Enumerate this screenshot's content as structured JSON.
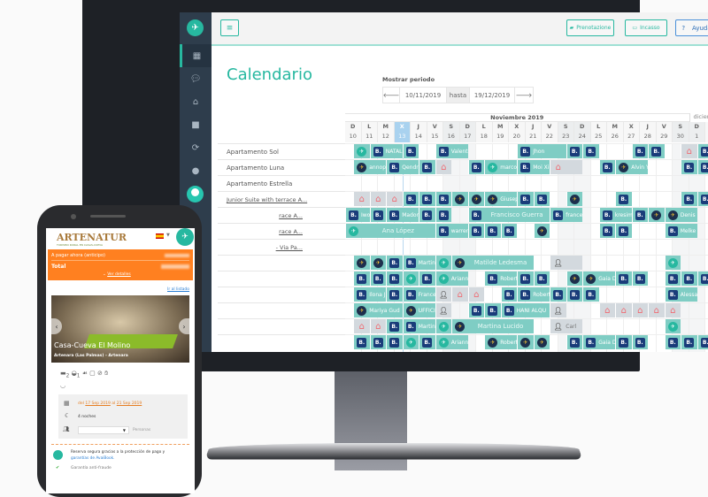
{
  "colors": {
    "accent": "#27b8a0",
    "booking_bar": "#7fcdc4",
    "phone_orange": "#ff8020"
  },
  "sidebar": {
    "items": [
      {
        "icon": "calendar-icon",
        "active": true
      },
      {
        "icon": "chat-icon"
      },
      {
        "icon": "home-icon"
      },
      {
        "icon": "briefcase-icon"
      },
      {
        "icon": "sync-icon"
      },
      {
        "icon": "globe-icon"
      }
    ]
  },
  "toolbar": {
    "prenotazione": "Prenotazione",
    "incasso": "Incasso",
    "ayuda": "Ayuda",
    "ayuda_icon": "?"
  },
  "page": {
    "title": "Calendario",
    "period_label": "Mostrar periodo",
    "from": "10/11/2019",
    "hasta": "hasta",
    "to": "19/12/2019"
  },
  "calendar": {
    "month": "Noviembre 2019",
    "next_month": "diciembre",
    "day_letters": [
      "D",
      "L",
      "M",
      "X",
      "J",
      "V",
      "S",
      "D",
      "L",
      "M",
      "X",
      "J",
      "V",
      "S",
      "D",
      "L",
      "M",
      "X",
      "J",
      "V",
      "S",
      "D",
      "L"
    ],
    "day_numbers": [
      "10",
      "11",
      "12",
      "13",
      "14",
      "15",
      "16",
      "17",
      "18",
      "19",
      "20",
      "21",
      "22",
      "23",
      "24",
      "25",
      "26",
      "27",
      "28",
      "29",
      "30",
      "1",
      "2"
    ],
    "today_index": 3,
    "weekend_indices": [
      6,
      7,
      13,
      14,
      20,
      21
    ],
    "rows": [
      {
        "label": "Apartamento Sol",
        "bookings": [
          [
            0.5,
            1,
            "avaibook",
            ""
          ],
          [
            1.5,
            2,
            "booking",
            "NATAL"
          ],
          [
            3.5,
            1,
            "booking",
            ""
          ],
          [
            5.5,
            2,
            "booking",
            "Valenti"
          ],
          [
            10.5,
            3,
            "booking",
            "Jhon"
          ],
          [
            13.5,
            1,
            "booking",
            ""
          ],
          [
            14.5,
            1,
            "booking",
            ""
          ],
          [
            17.5,
            1,
            "booking",
            ""
          ],
          [
            18.5,
            1,
            "booking",
            ""
          ],
          [
            20.5,
            1,
            "airbnb",
            ""
          ],
          [
            21.5,
            1,
            "booking",
            ""
          ]
        ]
      },
      {
        "label": "Apartamento Luna",
        "bookings": [
          [
            0.5,
            2,
            "expedia",
            "annop"
          ],
          [
            2.5,
            2,
            "booking",
            "Qendr"
          ],
          [
            4.5,
            1,
            "booking",
            ""
          ],
          [
            5.5,
            1,
            "airbnb",
            ""
          ],
          [
            7.5,
            1,
            "booking",
            ""
          ],
          [
            8.5,
            2,
            "avaibook",
            "marco"
          ],
          [
            10.5,
            2,
            "booking",
            "Moi Xi"
          ],
          [
            12.5,
            2,
            "airbnb",
            ""
          ],
          [
            15.5,
            1,
            "booking",
            ""
          ],
          [
            16.5,
            2,
            "expedia",
            "Alvin Y"
          ],
          [
            20.5,
            1,
            "booking",
            ""
          ],
          [
            21.5,
            1,
            "booking",
            ""
          ]
        ]
      },
      {
        "label": "Apartamento Estrella",
        "bookings": []
      },
      {
        "label": "Junior Suite with terrace A...",
        "link": true,
        "bookings": [
          [
            0.5,
            1,
            "airbnb",
            ""
          ],
          [
            1.5,
            1,
            "airbnb",
            ""
          ],
          [
            2.5,
            1,
            "airbnb",
            ""
          ],
          [
            3.5,
            1,
            "booking",
            ""
          ],
          [
            4.5,
            1,
            "booking",
            ""
          ],
          [
            5.5,
            1,
            "booking",
            ""
          ],
          [
            6.5,
            1,
            "expedia",
            ""
          ],
          [
            7.5,
            1,
            "expedia",
            ""
          ],
          [
            8.5,
            2,
            "expedia",
            "Giusep"
          ],
          [
            10.5,
            1,
            "booking",
            ""
          ],
          [
            11.5,
            1,
            "booking",
            ""
          ],
          [
            13.5,
            1,
            "expedia",
            ""
          ],
          [
            16.5,
            1,
            "booking",
            ""
          ],
          [
            20.5,
            1,
            "booking",
            ""
          ],
          [
            21.5,
            1,
            "booking",
            ""
          ]
        ]
      },
      {
        "label": "race A...",
        "link": true,
        "bookings": [
          [
            0,
            1.5,
            "booking",
            "Iwo"
          ],
          [
            1.5,
            1,
            "booking",
            ""
          ],
          [
            2.5,
            2,
            "booking",
            "Mador"
          ],
          [
            4.5,
            1,
            "booking",
            ""
          ],
          [
            5.5,
            1,
            "booking",
            ""
          ],
          [
            7.5,
            5,
            "booking",
            "Francisco Guerra"
          ],
          [
            12.5,
            2,
            "booking",
            "france"
          ],
          [
            15.5,
            2,
            "booking",
            "kresim"
          ],
          [
            17.5,
            1,
            "booking",
            ""
          ],
          [
            18.5,
            1,
            "expedia",
            ""
          ],
          [
            19.5,
            2,
            "expedia",
            "Denis"
          ]
        ]
      },
      {
        "label": "race A...",
        "link": true,
        "bookings": [
          [
            0,
            5.5,
            "avaibook",
            "Ana López"
          ],
          [
            5.5,
            2,
            "booking",
            "warren"
          ],
          [
            7.5,
            1,
            "booking",
            ""
          ],
          [
            8.5,
            1,
            "booking",
            ""
          ],
          [
            9.5,
            1,
            "booking",
            ""
          ],
          [
            11.5,
            1,
            "expedia",
            ""
          ],
          [
            15.5,
            1,
            "booking",
            ""
          ],
          [
            16.5,
            1,
            "booking",
            ""
          ],
          [
            19.5,
            2,
            "booking",
            "Melke"
          ]
        ]
      },
      {
        "label": "- Via Pa...",
        "link": true,
        "bookings": []
      },
      {
        "label": "",
        "bookings": [
          [
            0.5,
            1,
            "expedia",
            ""
          ],
          [
            1.5,
            1,
            "expedia",
            ""
          ],
          [
            2.5,
            1,
            "booking",
            ""
          ],
          [
            3.5,
            2,
            "booking",
            "Martin"
          ],
          [
            5.5,
            1,
            "avaibook",
            ""
          ],
          [
            6.5,
            5,
            "expedia",
            "Matilde Ledesma"
          ],
          [
            12.5,
            2,
            "blocked",
            ""
          ],
          [
            19.5,
            1,
            "avaibook",
            ""
          ]
        ]
      },
      {
        "label": "",
        "bookings": [
          [
            0.5,
            1,
            "booking",
            ""
          ],
          [
            1.5,
            1,
            "booking",
            ""
          ],
          [
            2.5,
            1,
            "booking",
            ""
          ],
          [
            3.5,
            1,
            "avaibook",
            ""
          ],
          [
            4.5,
            1,
            "booking",
            ""
          ],
          [
            5.5,
            2,
            "avaibook",
            "Ariann"
          ],
          [
            8.5,
            2,
            "booking",
            "Robert"
          ],
          [
            10.5,
            1,
            "booking",
            ""
          ],
          [
            11.5,
            1,
            "booking",
            ""
          ],
          [
            13.5,
            1,
            "expedia",
            ""
          ],
          [
            14.5,
            2,
            "expedia",
            "Gaia D"
          ],
          [
            16.5,
            1,
            "booking",
            ""
          ],
          [
            17.5,
            1,
            "booking",
            ""
          ],
          [
            19.5,
            1,
            "booking",
            ""
          ],
          [
            20.5,
            1,
            "booking",
            ""
          ],
          [
            21.5,
            1,
            "booking",
            ""
          ]
        ]
      },
      {
        "label": "",
        "bookings": [
          [
            0.5,
            2,
            "booking",
            "Ilona J"
          ],
          [
            2.5,
            1,
            "booking",
            ""
          ],
          [
            3.5,
            2,
            "booking",
            "France"
          ],
          [
            5.5,
            1,
            "blocked",
            ""
          ],
          [
            6.5,
            1,
            "airbnb",
            ""
          ],
          [
            7.5,
            1,
            "airbnb",
            ""
          ],
          [
            9.5,
            1,
            "booking",
            ""
          ],
          [
            10.5,
            2,
            "booking",
            "Robert"
          ],
          [
            12.5,
            1,
            "booking",
            ""
          ],
          [
            13.5,
            1,
            "booking",
            ""
          ],
          [
            14.5,
            1,
            "booking",
            ""
          ],
          [
            19.5,
            2,
            "booking",
            "Alessa"
          ]
        ]
      },
      {
        "label": "",
        "bookings": [
          [
            0.5,
            3,
            "expedia",
            "Mariya Gud"
          ],
          [
            3.5,
            2,
            "expedia",
            "UFFICI"
          ],
          [
            5.5,
            1,
            "blocked",
            ""
          ],
          [
            7.5,
            1,
            "booking",
            ""
          ],
          [
            8.5,
            1,
            "booking",
            ""
          ],
          [
            9.5,
            3,
            "booking",
            "HANI ALQU"
          ],
          [
            12.5,
            1,
            "blocked",
            ""
          ],
          [
            15.5,
            1,
            "airbnb",
            ""
          ],
          [
            16.5,
            1,
            "airbnb",
            ""
          ],
          [
            17.5,
            1,
            "airbnb",
            ""
          ],
          [
            18.5,
            1,
            "airbnb",
            ""
          ],
          [
            19.5,
            1,
            "airbnb",
            ""
          ]
        ]
      },
      {
        "label": "",
        "bookings": [
          [
            0.5,
            1,
            "airbnb",
            ""
          ],
          [
            1.5,
            1,
            "airbnb",
            ""
          ],
          [
            2.5,
            1,
            "booking",
            ""
          ],
          [
            3.5,
            2,
            "booking",
            "Martin"
          ],
          [
            5.5,
            1,
            "avaibook",
            ""
          ],
          [
            6.5,
            5,
            "expedia",
            "Martina Lucido"
          ],
          [
            12.5,
            2,
            "blocked",
            "Carl"
          ],
          [
            19.5,
            1,
            "avaibook",
            ""
          ]
        ]
      },
      {
        "label": "",
        "bookings": [
          [
            0.5,
            1,
            "booking",
            ""
          ],
          [
            1.5,
            1,
            "booking",
            ""
          ],
          [
            2.5,
            1,
            "booking",
            ""
          ],
          [
            3.5,
            1,
            "avaibook",
            ""
          ],
          [
            4.5,
            1,
            "booking",
            ""
          ],
          [
            5.5,
            2,
            "avaibook",
            "Ariann"
          ],
          [
            8.5,
            2,
            "expedia",
            "Robert"
          ],
          [
            10.5,
            1,
            "expedia",
            ""
          ],
          [
            11.5,
            1,
            "expedia",
            ""
          ],
          [
            13.5,
            1,
            "booking",
            ""
          ],
          [
            14.5,
            2,
            "booking",
            "Gaia D"
          ],
          [
            16.5,
            1,
            "booking",
            ""
          ],
          [
            17.5,
            1,
            "booking",
            ""
          ],
          [
            19.5,
            1,
            "booking",
            ""
          ],
          [
            20.5,
            1,
            "booking",
            ""
          ],
          [
            21.5,
            1,
            "booking",
            ""
          ]
        ]
      }
    ]
  },
  "phone": {
    "logo": "ARTENATUR",
    "logo_tagline": "TURISMO RURAL EN CASAS-CUEVA",
    "pay_now": "A pagar ahora (anticipo)",
    "total": "Total",
    "details": "Ver detalles",
    "back_link": "Ir al listado",
    "property_name": "Casa-Cueva El Molino",
    "property_location": "Artenara (Las Palmas) - Artenara",
    "beds": "2",
    "baths": "1",
    "dates_prefix": "del",
    "date_from": "17 Sep 2019",
    "dates_mid": "al",
    "date_to": "21 Sep 2019",
    "nights": "4 noches",
    "persons_label": "Personas",
    "secure_text": "Reserva segura gracias a la protección de pago y",
    "secure_link": "garantías de AvaiBook.",
    "fraud": "Garantía anti-fraude"
  }
}
